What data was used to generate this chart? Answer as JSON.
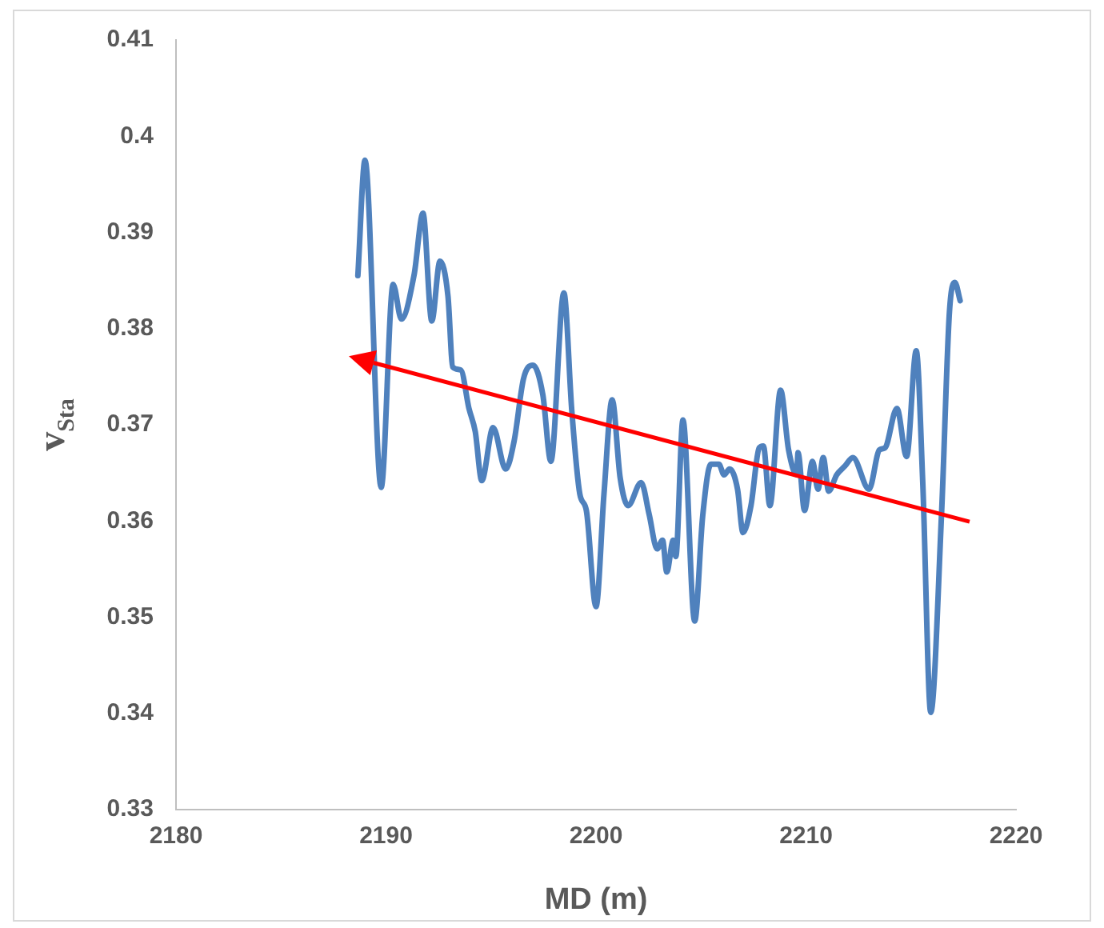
{
  "chart_data": {
    "type": "line",
    "xlabel": "MD (m)",
    "ylabel": "v$_{Sta}$",
    "xlim": [
      2180,
      2220
    ],
    "xticks": [
      2180,
      2190,
      2200,
      2210,
      2220
    ],
    "ylim": [
      0.33,
      0.41
    ],
    "yticks": [
      0.33,
      0.34,
      0.35,
      0.36,
      0.37,
      0.38,
      0.39,
      0.4,
      0.41
    ],
    "grid": false,
    "legend": false,
    "marker": "none",
    "line_style": "solid",
    "series": [
      {
        "type": "line",
        "color": "#4f81bd",
        "x": [
          2188.66,
          2189.0,
          2189.77,
          2190.34,
          2190.73,
          2191.34,
          2191.76,
          2192.18,
          2192.57,
          2192.95,
          2193.18,
          2193.56,
          2193.95,
          2194.25,
          2194.56,
          2195.1,
          2195.7,
          2196.1,
          2196.55,
          2197.0,
          2197.47,
          2197.85,
          2198.47,
          2198.85,
          2199.23,
          2199.54,
          2200.0,
          2200.38,
          2200.77,
          2201.15,
          2201.53,
          2202.15,
          2202.53,
          2202.91,
          2203.17,
          2203.37,
          2203.68,
          2203.8,
          2204.14,
          2204.7,
          2205.08,
          2205.47,
          2205.85,
          2206.1,
          2206.36,
          2206.74,
          2207.0,
          2207.38,
          2207.77,
          2207.97,
          2208.28,
          2208.79,
          2209.17,
          2209.56,
          2209.62,
          2209.93,
          2210.31,
          2210.57,
          2210.82,
          2211.08,
          2211.46,
          2211.85,
          2212.23,
          2213.0,
          2213.5,
          2213.76,
          2214.33,
          2214.79,
          2215.25,
          2215.56,
          2215.94,
          2216.45,
          2216.83,
          2217.09,
          2217.34
        ],
        "values": [
          0.3855,
          0.3975,
          0.3635,
          0.3846,
          0.381,
          0.3856,
          0.392,
          0.3808,
          0.387,
          0.3834,
          0.376,
          0.3757,
          0.3717,
          0.3693,
          0.3642,
          0.3697,
          0.3654,
          0.3683,
          0.3748,
          0.3762,
          0.3731,
          0.3662,
          0.3837,
          0.3714,
          0.3628,
          0.3611,
          0.3511,
          0.3628,
          0.3726,
          0.3645,
          0.3616,
          0.364,
          0.3607,
          0.3571,
          0.358,
          0.3547,
          0.358,
          0.3563,
          0.3705,
          0.3496,
          0.3605,
          0.3659,
          0.3659,
          0.3648,
          0.3654,
          0.3633,
          0.3588,
          0.3616,
          0.3676,
          0.3678,
          0.3616,
          0.3736,
          0.3674,
          0.3648,
          0.3671,
          0.3611,
          0.3662,
          0.3633,
          0.3666,
          0.3631,
          0.3648,
          0.3657,
          0.3666,
          0.3633,
          0.3674,
          0.3676,
          0.3717,
          0.3667,
          0.3777,
          0.364,
          0.3401,
          0.3605,
          0.3817,
          0.3848,
          0.3829
        ]
      }
    ]
  }
}
